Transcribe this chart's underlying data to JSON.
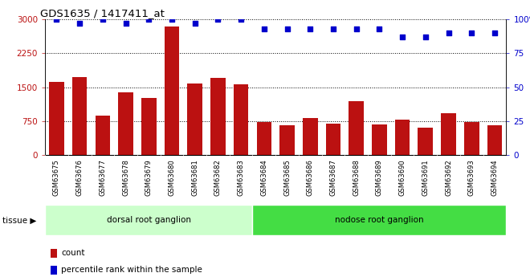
{
  "title": "GDS1635 / 1417411_at",
  "categories": [
    "GSM63675",
    "GSM63676",
    "GSM63677",
    "GSM63678",
    "GSM63679",
    "GSM63680",
    "GSM63681",
    "GSM63682",
    "GSM63683",
    "GSM63684",
    "GSM63685",
    "GSM63686",
    "GSM63687",
    "GSM63688",
    "GSM63689",
    "GSM63690",
    "GSM63691",
    "GSM63692",
    "GSM63693",
    "GSM63694"
  ],
  "counts": [
    1620,
    1720,
    870,
    1390,
    1260,
    2840,
    1580,
    1700,
    1560,
    730,
    660,
    820,
    700,
    1200,
    680,
    790,
    610,
    920,
    730,
    660
  ],
  "percentile": [
    100,
    97,
    100,
    97,
    100,
    100,
    97,
    100,
    100,
    93,
    93,
    93,
    93,
    93,
    93,
    87,
    87,
    90,
    90,
    90
  ],
  "tissue_groups": [
    {
      "label": "dorsal root ganglion",
      "start": 0,
      "end": 9,
      "color": "#ccffcc"
    },
    {
      "label": "nodose root ganglion",
      "start": 9,
      "end": 20,
      "color": "#44dd44"
    }
  ],
  "bar_color": "#bb1111",
  "dot_color": "#0000cc",
  "left_ylim": [
    0,
    3000
  ],
  "right_ylim": [
    0,
    100
  ],
  "left_yticks": [
    0,
    750,
    1500,
    2250,
    3000
  ],
  "right_yticks": [
    0,
    25,
    50,
    75,
    100
  ],
  "right_yticklabels": [
    "0",
    "25",
    "50",
    "75",
    "100%"
  ],
  "bg_color": "#ffffff",
  "plot_bg_color": "#ffffff",
  "xtick_bg_color": "#cccccc",
  "tissue_label": "tissue",
  "legend_count_label": "count",
  "legend_pct_label": "percentile rank within the sample"
}
